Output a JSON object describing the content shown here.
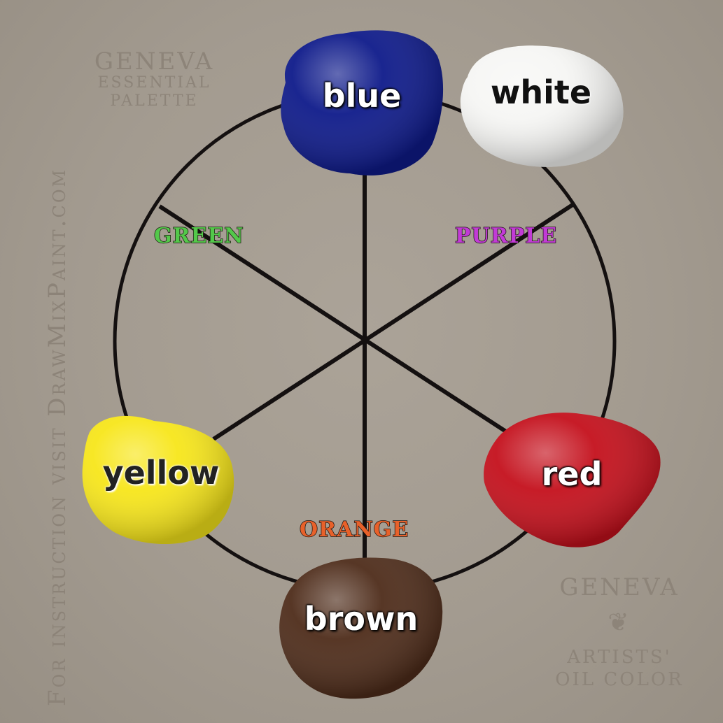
{
  "watermark": {
    "side_text": "For instruction visit DrawMixPaint.com",
    "top_left": {
      "line1": "GENEVA",
      "line2": "ESSENTIAL",
      "line3": "PALETTE"
    },
    "bottom_right": {
      "line1": "GENEVA",
      "ornament": "❦",
      "line2": "ARTISTS'",
      "line3": "OIL COLOR"
    }
  },
  "secondaries": {
    "green": {
      "label": "GREEN",
      "color": "#53c84a"
    },
    "purple": {
      "label": "PURPLE",
      "color": "#c23bd6"
    },
    "orange": {
      "label": "ORANGE",
      "color": "#e8612a"
    }
  },
  "paints": {
    "blue": {
      "label": "blue",
      "color": "#0e1a8a"
    },
    "white": {
      "label": "white",
      "color": "#f6f6f4"
    },
    "yellow": {
      "label": "yellow",
      "color": "#f7e61a"
    },
    "red": {
      "label": "red",
      "color": "#c4101c"
    },
    "brown": {
      "label": "brown",
      "color": "#4e2c1a"
    }
  },
  "line_color": "#141010"
}
